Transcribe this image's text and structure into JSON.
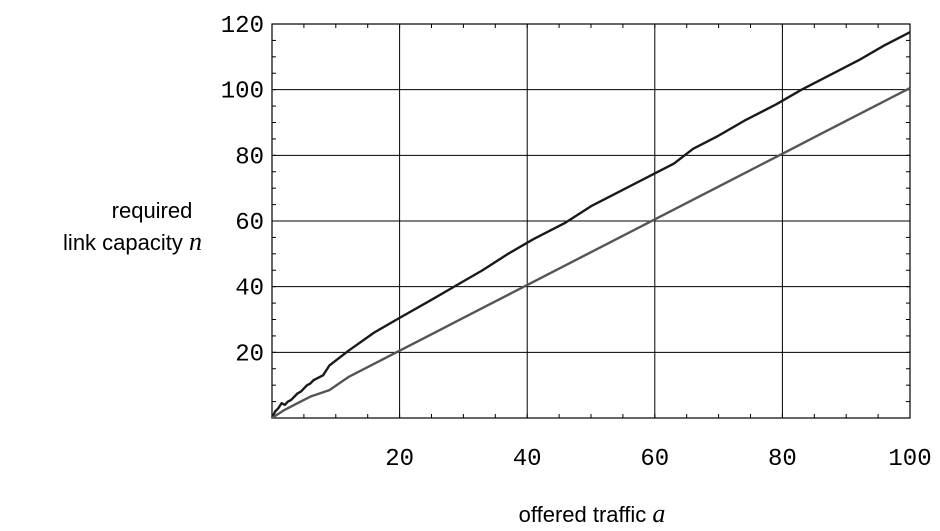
{
  "chart_data": {
    "type": "line",
    "title": "",
    "xlabel": {
      "line1": "offered traffic ",
      "var": "a"
    },
    "ylabel": {
      "line1": "required",
      "line2": "link capacity ",
      "var": "n"
    },
    "xlim": [
      0,
      100
    ],
    "ylim": [
      0,
      120
    ],
    "x_ticks": [
      20,
      40,
      60,
      80,
      100
    ],
    "y_ticks": [
      20,
      40,
      60,
      80,
      100,
      120
    ],
    "x_tick_labels": [
      "20",
      "40",
      "60",
      "80",
      "100"
    ],
    "y_tick_labels": [
      "20",
      "40",
      "60",
      "80",
      "100",
      "120"
    ],
    "grid": true,
    "series": [
      {
        "color": "#1a1a1a",
        "points": [
          [
            0,
            0
          ],
          [
            0.5,
            2
          ],
          [
            1,
            3
          ],
          [
            1.5,
            4.5
          ],
          [
            2,
            4
          ],
          [
            2.5,
            5
          ],
          [
            3,
            5.5
          ],
          [
            3.5,
            6.5
          ],
          [
            4,
            7.5
          ],
          [
            4.5,
            8
          ],
          [
            5,
            9
          ],
          [
            5.5,
            10
          ],
          [
            6,
            10.5
          ],
          [
            6.5,
            11.5
          ],
          [
            7,
            12
          ],
          [
            7.5,
            12.5
          ],
          [
            8,
            13
          ],
          [
            9,
            16
          ],
          [
            12,
            20.5
          ],
          [
            16,
            26
          ],
          [
            20,
            30.5
          ],
          [
            25,
            36
          ],
          [
            29,
            40.5
          ],
          [
            33,
            45
          ],
          [
            37,
            50
          ],
          [
            41,
            54.5
          ],
          [
            46,
            59.5
          ],
          [
            50,
            64.5
          ],
          [
            55,
            69.5
          ],
          [
            59,
            73.5
          ],
          [
            63,
            77.5
          ],
          [
            66,
            82
          ],
          [
            70,
            86
          ],
          [
            74,
            90.5
          ],
          [
            79,
            95.5
          ],
          [
            83,
            100
          ],
          [
            87,
            104
          ],
          [
            92,
            109
          ],
          [
            96,
            113.5
          ],
          [
            100,
            117.5
          ]
        ]
      },
      {
        "color": "#555555",
        "points": [
          [
            0,
            0
          ],
          [
            2,
            2.5
          ],
          [
            4,
            4.5
          ],
          [
            6,
            6.5
          ],
          [
            9,
            8.5
          ],
          [
            12,
            12.5
          ],
          [
            16,
            16.5
          ],
          [
            20,
            20.5
          ],
          [
            25,
            25.5
          ],
          [
            30,
            30.5
          ],
          [
            34,
            34.5
          ],
          [
            38,
            38.5
          ],
          [
            42,
            42.5
          ],
          [
            46,
            46.5
          ],
          [
            50,
            50.5
          ],
          [
            54,
            54.5
          ],
          [
            58,
            58.5
          ],
          [
            62,
            62.5
          ],
          [
            66,
            66.5
          ],
          [
            70,
            70.5
          ],
          [
            74,
            74.5
          ],
          [
            78,
            78.5
          ],
          [
            82,
            82.5
          ],
          [
            86,
            86.5
          ],
          [
            90,
            90.5
          ],
          [
            95,
            95.5
          ],
          [
            100,
            100.5
          ]
        ]
      }
    ]
  }
}
